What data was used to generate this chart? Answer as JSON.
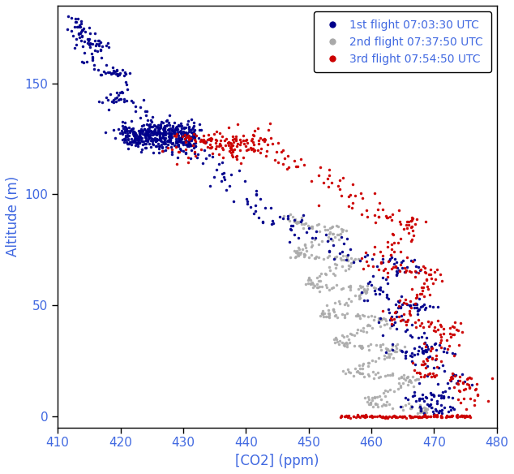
{
  "xlabel": "[CO2] (ppm)",
  "ylabel": "Altitude (m)",
  "xlim": [
    410,
    480
  ],
  "ylim": [
    -5,
    185
  ],
  "xticks": [
    410,
    420,
    430,
    440,
    450,
    460,
    470,
    480
  ],
  "yticks": [
    0,
    50,
    100,
    150
  ],
  "legend_labels": [
    "1st flight 07:03:30 UTC",
    "2nd flight 07:37:50 UTC",
    "3rd flight 07:54:50 UTC"
  ],
  "colors": [
    "#00008B",
    "#A9A9A9",
    "#CC0000"
  ],
  "marker_size": 2.5,
  "background_color": "#FFFFFF",
  "fig_bg": "#FFFFFF"
}
